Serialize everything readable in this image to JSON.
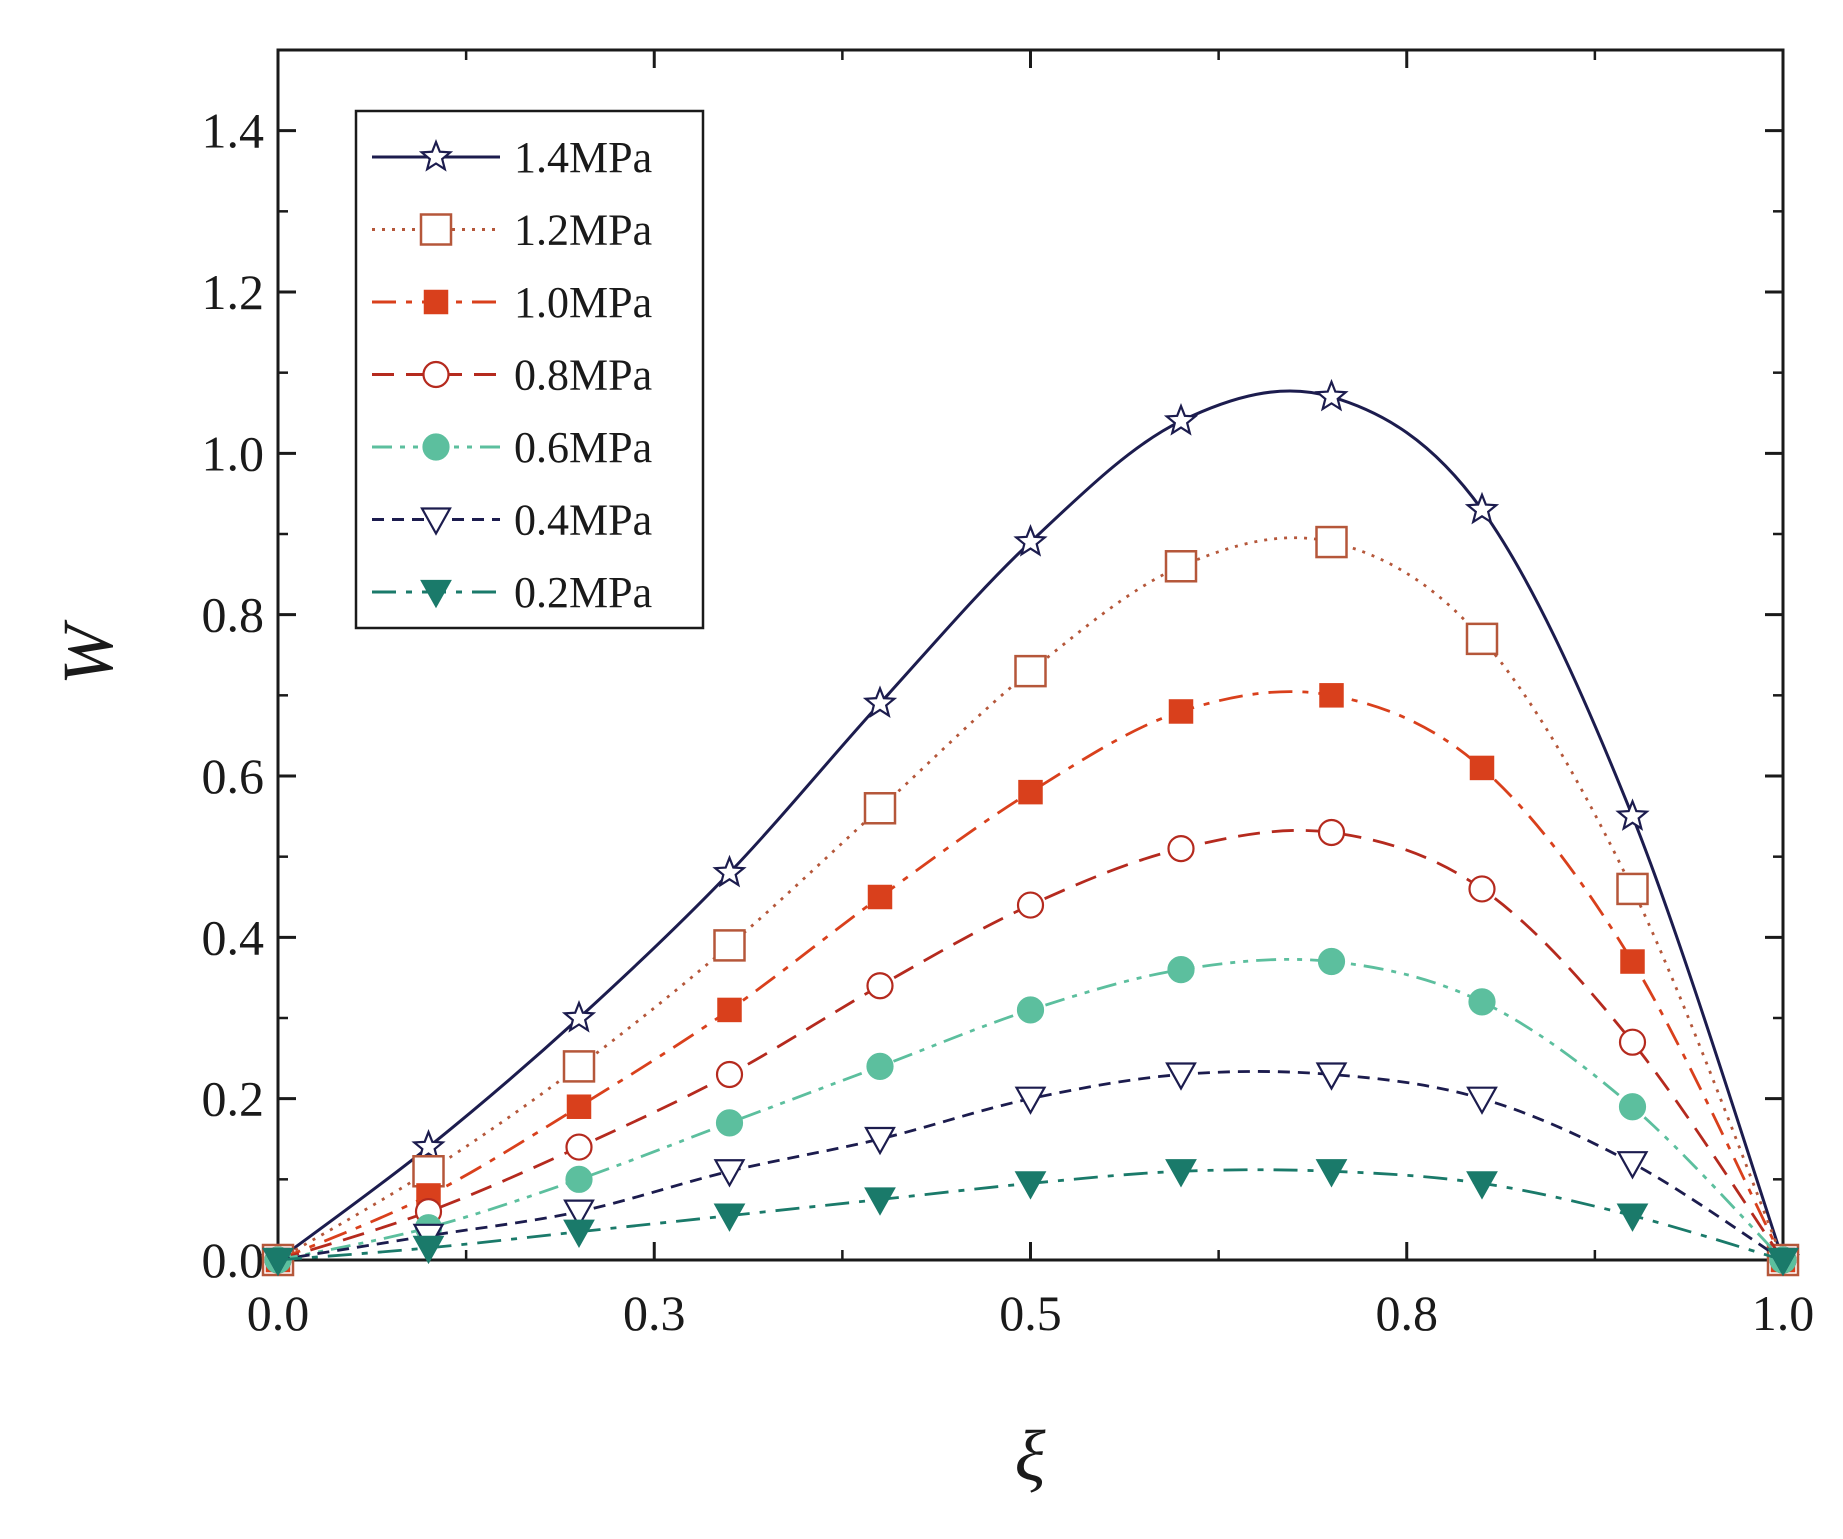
{
  "chart_data": {
    "type": "line",
    "title": "",
    "xlabel": "ξ",
    "ylabel": "W",
    "xlim": [
      0.0,
      1.0
    ],
    "ylim": [
      0.0,
      1.5
    ],
    "x_ticks": [
      0.0,
      0.25,
      0.5,
      0.75,
      1.0
    ],
    "x_tick_labels": [
      "0.0",
      "0.3",
      "0.5",
      "0.8",
      "1.0"
    ],
    "y_ticks": [
      0.0,
      0.2,
      0.4,
      0.6,
      0.8,
      1.0,
      1.2,
      1.4
    ],
    "y_tick_labels": [
      "0.0",
      "0.2",
      "0.4",
      "0.6",
      "0.8",
      "1.0",
      "1.2",
      "1.4"
    ],
    "grid": false,
    "legend_position": "top-left",
    "x": [
      0.0,
      0.1,
      0.2,
      0.3,
      0.4,
      0.5,
      0.6,
      0.7,
      0.8,
      0.9,
      1.0
    ],
    "series": [
      {
        "name": "1.4MPa",
        "color": "#1c1c4e",
        "line": "solid",
        "marker": "star-open",
        "values": [
          0.0,
          0.14,
          0.3,
          0.48,
          0.69,
          0.89,
          1.04,
          1.07,
          0.93,
          0.55,
          0.0
        ]
      },
      {
        "name": "1.2MPa",
        "color": "#b5573a",
        "line": "dotted",
        "marker": "square-open",
        "values": [
          0.0,
          0.11,
          0.24,
          0.39,
          0.56,
          0.73,
          0.86,
          0.89,
          0.77,
          0.46,
          0.0
        ]
      },
      {
        "name": "1.0MPa",
        "color": "#d9401c",
        "line": "dashdot",
        "marker": "square-filled",
        "values": [
          0.0,
          0.08,
          0.19,
          0.31,
          0.45,
          0.58,
          0.68,
          0.7,
          0.61,
          0.37,
          0.0
        ]
      },
      {
        "name": "0.8MPa",
        "color": "#b52a1e",
        "line": "dashed",
        "marker": "circle-open",
        "values": [
          0.0,
          0.06,
          0.14,
          0.23,
          0.34,
          0.44,
          0.51,
          0.53,
          0.46,
          0.27,
          0.0
        ]
      },
      {
        "name": "0.6MPa",
        "color": "#5cbf9e",
        "line": "dashdotdot",
        "marker": "circle-filled",
        "values": [
          0.0,
          0.04,
          0.1,
          0.17,
          0.24,
          0.31,
          0.36,
          0.37,
          0.32,
          0.19,
          0.0
        ]
      },
      {
        "name": "0.4MPa",
        "color": "#1c1c4e",
        "line": "short-dashed",
        "marker": "triangle-down-open",
        "values": [
          0.0,
          0.03,
          0.06,
          0.11,
          0.15,
          0.2,
          0.23,
          0.23,
          0.2,
          0.12,
          0.0
        ]
      },
      {
        "name": "0.2MPa",
        "color": "#1a7a6a",
        "line": "dashdot",
        "marker": "triangle-down-filled",
        "values": [
          0.0,
          0.015,
          0.035,
          0.055,
          0.075,
          0.095,
          0.11,
          0.11,
          0.095,
          0.055,
          0.0
        ]
      }
    ]
  }
}
